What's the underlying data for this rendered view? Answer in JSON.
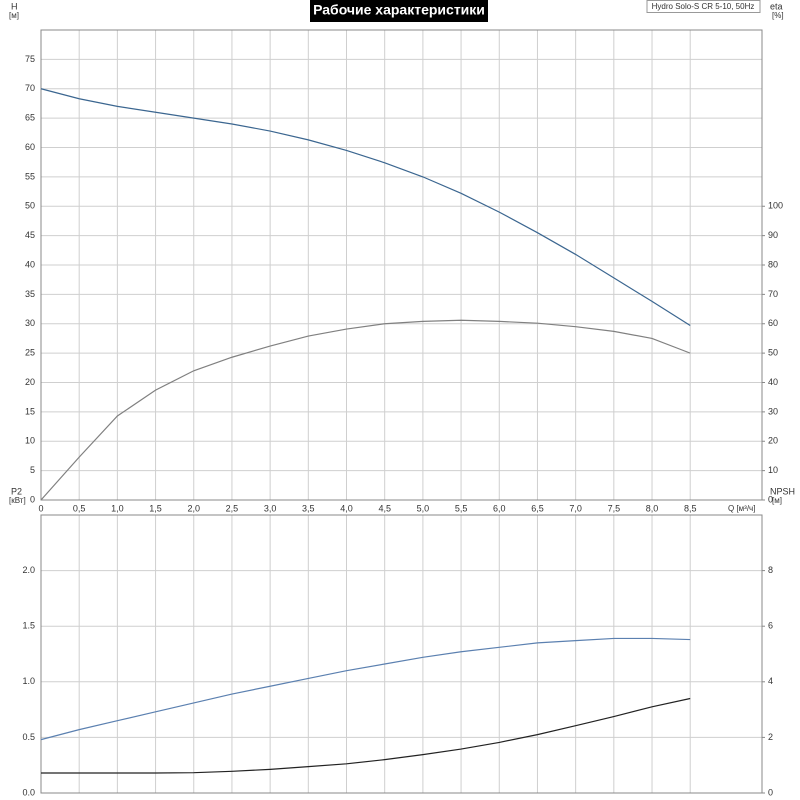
{
  "chart_data": [
    {
      "type": "line",
      "title": "Рабочие характеристики",
      "annotation": "Hydro Solo-S CR 5-10, 50Hz",
      "y_label": "H",
      "y_unit": "[м]",
      "y2_label": "eta",
      "y2_unit": "[%]",
      "x_label": "Q [м³/ч]",
      "x": [
        0,
        0.5,
        1,
        1.5,
        2,
        2.5,
        3,
        3.5,
        4,
        4.5,
        5,
        5.5,
        6,
        6.5,
        7,
        7.5,
        8,
        8.5
      ],
      "xlim": [
        0,
        9.44
      ],
      "ylim": [
        0,
        80
      ],
      "y2lim": [
        0,
        160
      ],
      "xticks": [
        0,
        {
          "value": 0.5,
          "label": "0,5"
        },
        {
          "value": 1,
          "label": "1,0"
        },
        {
          "value": 1.5,
          "label": "1,5"
        },
        {
          "value": 2,
          "label": "2,0"
        },
        {
          "value": 2.5,
          "label": "2,5"
        },
        {
          "value": 3,
          "label": "3,0"
        },
        {
          "value": 3.5,
          "label": "3,5"
        },
        {
          "value": 4,
          "label": "4,0"
        },
        {
          "value": 4.5,
          "label": "4,5"
        },
        {
          "value": 5,
          "label": "5,0"
        },
        {
          "value": 5.5,
          "label": "5,5"
        },
        {
          "value": 6,
          "label": "6,0"
        },
        {
          "value": 6.5,
          "label": "6,5"
        },
        {
          "value": 7,
          "label": "7,0"
        },
        {
          "value": 7.5,
          "label": "7,5"
        },
        {
          "value": 8,
          "label": "8,0"
        },
        {
          "value": 8.5,
          "label": "8,5"
        }
      ],
      "yticks": [
        0,
        5,
        10,
        15,
        20,
        25,
        30,
        35,
        40,
        45,
        50,
        55,
        60,
        65,
        70,
        75
      ],
      "y2ticks": [
        0,
        10,
        20,
        30,
        40,
        50,
        60,
        70,
        80,
        90,
        100
      ],
      "grid": true,
      "series": [
        {
          "name": "H",
          "color": "#3b6690",
          "values": [
            70,
            68.3,
            67,
            66,
            65,
            64,
            62.8,
            61.3,
            59.5,
            57.4,
            55,
            52.2,
            49,
            45.5,
            41.8,
            37.8,
            33.8,
            29.7
          ]
        },
        {
          "name": "eta",
          "color": "#808080",
          "axis": "y2",
          "values": [
            0,
            14.6,
            28.6,
            37.4,
            44,
            48.6,
            52.4,
            55.8,
            58.2,
            60,
            60.8,
            61.2,
            60.8,
            60.2,
            59,
            57.4,
            55,
            50
          ]
        }
      ]
    },
    {
      "type": "line",
      "y_label": "P2",
      "y_unit": "[кВт]",
      "y2_label": "NPSH",
      "y2_unit": "[м]",
      "x": [
        0,
        0.5,
        1,
        1.5,
        2,
        2.5,
        3,
        3.5,
        4,
        4.5,
        5,
        5.5,
        6,
        6.5,
        7,
        7.5,
        8,
        8.5
      ],
      "xlim": [
        0,
        9.44
      ],
      "ylim": [
        0,
        2.5
      ],
      "y2lim": [
        0,
        10
      ],
      "xticks": [
        0,
        0.5,
        1,
        1.5,
        2,
        2.5,
        3,
        3.5,
        4,
        4.5,
        5,
        5.5,
        6,
        6.5,
        7,
        7.5,
        8,
        8.5
      ],
      "yticks": [
        {
          "value": 0,
          "label": "0.0"
        },
        0.5,
        {
          "value": 1,
          "label": "1.0"
        },
        1.5,
        {
          "value": 2,
          "label": "2.0"
        }
      ],
      "y2ticks": [
        0,
        2,
        4,
        6,
        8
      ],
      "grid": true,
      "series": [
        {
          "name": "P2",
          "color": "#5b80b0",
          "values": [
            0.48,
            0.57,
            0.65,
            0.73,
            0.81,
            0.89,
            0.96,
            1.03,
            1.1,
            1.16,
            1.22,
            1.27,
            1.31,
            1.35,
            1.37,
            1.39,
            1.39,
            1.38
          ]
        },
        {
          "name": "NPSH",
          "color": "#222222",
          "axis": "y2",
          "values": [
            0.72,
            0.72,
            0.72,
            0.72,
            0.73,
            0.78,
            0.85,
            0.95,
            1.05,
            1.2,
            1.38,
            1.58,
            1.82,
            2.1,
            2.42,
            2.75,
            3.1,
            3.4
          ]
        }
      ]
    }
  ]
}
